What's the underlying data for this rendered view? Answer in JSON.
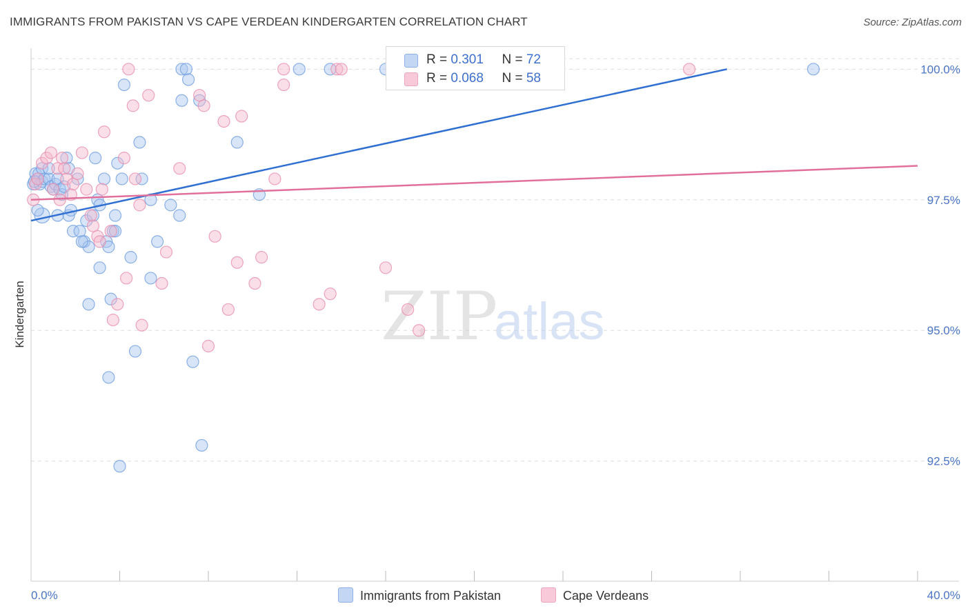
{
  "title": "IMMIGRANTS FROM PAKISTAN VS CAPE VERDEAN KINDERGARTEN CORRELATION CHART",
  "source": "Source: ZipAtlas.com",
  "watermark": {
    "zip": "ZIP",
    "atlas": "atlas"
  },
  "colors": {
    "blue_fill": "#a9c6f0",
    "blue_stroke": "#6f9ee0",
    "blue_line": "#2e6fd1",
    "pink_fill": "#f4b8cc",
    "pink_stroke": "#e98fae",
    "pink_line": "#e0709b",
    "grid": "#dddddd",
    "axis_text": "#4a74c4"
  },
  "legend": {
    "series1": {
      "r_label": "R = ",
      "r_value": "0.301",
      "n_label": "N = ",
      "n_value": "72"
    },
    "series2": {
      "r_label": "R = ",
      "r_value": "0.068",
      "n_label": "N = ",
      "n_value": "58"
    }
  },
  "chart_data": {
    "type": "scatter",
    "title": "IMMIGRANTS FROM PAKISTAN VS CAPE VERDEAN KINDERGARTEN CORRELATION CHART",
    "xlabel": "",
    "ylabel": "Kindergarten",
    "xlim": [
      0,
      40
    ],
    "ylim": [
      90.2,
      100.4
    ],
    "x_tick_labels": [
      "0.0%",
      "40.0%"
    ],
    "y_ticks": [
      92.5,
      95.0,
      97.5,
      100.0
    ],
    "y_tick_labels": [
      "92.5%",
      "95.0%",
      "97.5%",
      "100.0%"
    ],
    "legend_position": "top-center",
    "series": [
      {
        "name": "Immigrants from Pakistan",
        "color": "#a9c6f0",
        "trend": {
          "x": [
            0,
            31.4
          ],
          "y": [
            97.1,
            100.0
          ]
        },
        "points": [
          [
            0.1,
            97.8
          ],
          [
            0.2,
            98.0
          ],
          [
            0.3,
            97.9
          ],
          [
            0.35,
            98.0
          ],
          [
            0.4,
            97.8
          ],
          [
            0.5,
            98.1
          ],
          [
            0.5,
            97.85
          ],
          [
            0.6,
            97.9
          ],
          [
            0.5,
            97.2
          ],
          [
            0.8,
            97.9
          ],
          [
            0.9,
            97.75
          ],
          [
            1.0,
            97.7
          ],
          [
            1.1,
            97.8
          ],
          [
            1.2,
            97.9
          ],
          [
            1.3,
            97.7
          ],
          [
            1.4,
            97.6
          ],
          [
            1.5,
            97.75
          ],
          [
            1.6,
            98.3
          ],
          [
            1.7,
            97.2
          ],
          [
            1.8,
            97.3
          ],
          [
            1.7,
            98.1
          ],
          [
            2.1,
            97.9
          ],
          [
            1.9,
            96.9
          ],
          [
            2.2,
            96.9
          ],
          [
            2.4,
            96.7
          ],
          [
            2.5,
            97.1
          ],
          [
            2.6,
            96.6
          ],
          [
            2.8,
            97.2
          ],
          [
            2.9,
            98.3
          ],
          [
            3.0,
            97.5
          ],
          [
            3.1,
            97.4
          ],
          [
            3.1,
            96.2
          ],
          [
            3.3,
            97.9
          ],
          [
            3.4,
            96.7
          ],
          [
            3.5,
            96.6
          ],
          [
            3.6,
            95.6
          ],
          [
            3.7,
            96.9
          ],
          [
            3.8,
            96.9
          ],
          [
            3.8,
            97.2
          ],
          [
            3.9,
            98.2
          ],
          [
            4.0,
            92.4
          ],
          [
            4.1,
            97.9
          ],
          [
            4.2,
            99.7
          ],
          [
            4.5,
            96.4
          ],
          [
            4.7,
            94.6
          ],
          [
            4.9,
            98.6
          ],
          [
            5.0,
            97.9
          ],
          [
            5.4,
            97.5
          ],
          [
            5.4,
            96.0
          ],
          [
            5.7,
            96.7
          ],
          [
            6.3,
            97.4
          ],
          [
            6.7,
            97.2
          ],
          [
            6.8,
            99.4
          ],
          [
            6.8,
            100.0
          ],
          [
            7.0,
            100.0
          ],
          [
            7.1,
            99.8
          ],
          [
            7.3,
            94.4
          ],
          [
            7.6,
            99.4
          ],
          [
            7.7,
            92.8
          ],
          [
            9.3,
            98.6
          ],
          [
            10.3,
            97.6
          ],
          [
            12.1,
            100.0
          ],
          [
            13.5,
            100.0
          ],
          [
            16.0,
            100.0
          ],
          [
            35.3,
            100.0
          ],
          [
            0.3,
            97.3
          ],
          [
            2.3,
            96.7
          ],
          [
            1.2,
            97.2
          ],
          [
            0.15,
            97.85
          ],
          [
            2.6,
            95.5
          ],
          [
            3.5,
            94.1
          ],
          [
            0.8,
            98.1
          ]
        ]
      },
      {
        "name": "Cape Verdeans",
        "color": "#f4b8cc",
        "trend": {
          "x": [
            0,
            40
          ],
          "y": [
            97.5,
            98.15
          ]
        },
        "points": [
          [
            0.1,
            97.5
          ],
          [
            0.2,
            97.8
          ],
          [
            0.3,
            97.9
          ],
          [
            0.5,
            98.2
          ],
          [
            0.7,
            98.3
          ],
          [
            0.9,
            98.4
          ],
          [
            1.0,
            97.7
          ],
          [
            1.2,
            98.1
          ],
          [
            1.3,
            97.5
          ],
          [
            1.4,
            98.3
          ],
          [
            1.5,
            98.1
          ],
          [
            1.6,
            97.9
          ],
          [
            1.8,
            97.6
          ],
          [
            1.9,
            97.8
          ],
          [
            2.1,
            98.0
          ],
          [
            2.3,
            98.4
          ],
          [
            2.5,
            97.7
          ],
          [
            2.7,
            97.2
          ],
          [
            2.8,
            97.0
          ],
          [
            3.0,
            96.8
          ],
          [
            3.1,
            96.7
          ],
          [
            3.2,
            97.7
          ],
          [
            3.3,
            98.8
          ],
          [
            3.6,
            96.9
          ],
          [
            3.7,
            95.2
          ],
          [
            3.9,
            95.5
          ],
          [
            4.2,
            98.3
          ],
          [
            4.3,
            96.0
          ],
          [
            4.4,
            100.0
          ],
          [
            4.6,
            99.3
          ],
          [
            4.7,
            97.9
          ],
          [
            4.9,
            97.4
          ],
          [
            5.0,
            95.1
          ],
          [
            5.3,
            99.5
          ],
          [
            5.9,
            95.9
          ],
          [
            6.1,
            96.5
          ],
          [
            6.7,
            98.1
          ],
          [
            7.6,
            99.5
          ],
          [
            7.8,
            99.3
          ],
          [
            8.0,
            94.7
          ],
          [
            8.3,
            96.8
          ],
          [
            8.7,
            99.0
          ],
          [
            8.9,
            95.4
          ],
          [
            9.3,
            96.3
          ],
          [
            9.5,
            99.1
          ],
          [
            10.1,
            95.9
          ],
          [
            10.4,
            96.4
          ],
          [
            11.0,
            97.9
          ],
          [
            11.4,
            100.0
          ],
          [
            11.4,
            99.7
          ],
          [
            13.0,
            95.5
          ],
          [
            13.5,
            95.7
          ],
          [
            13.8,
            100.0
          ],
          [
            14.0,
            100.0
          ],
          [
            16.0,
            96.2
          ],
          [
            17.0,
            95.4
          ],
          [
            17.5,
            95.0
          ],
          [
            29.7,
            100.0
          ]
        ]
      }
    ]
  }
}
